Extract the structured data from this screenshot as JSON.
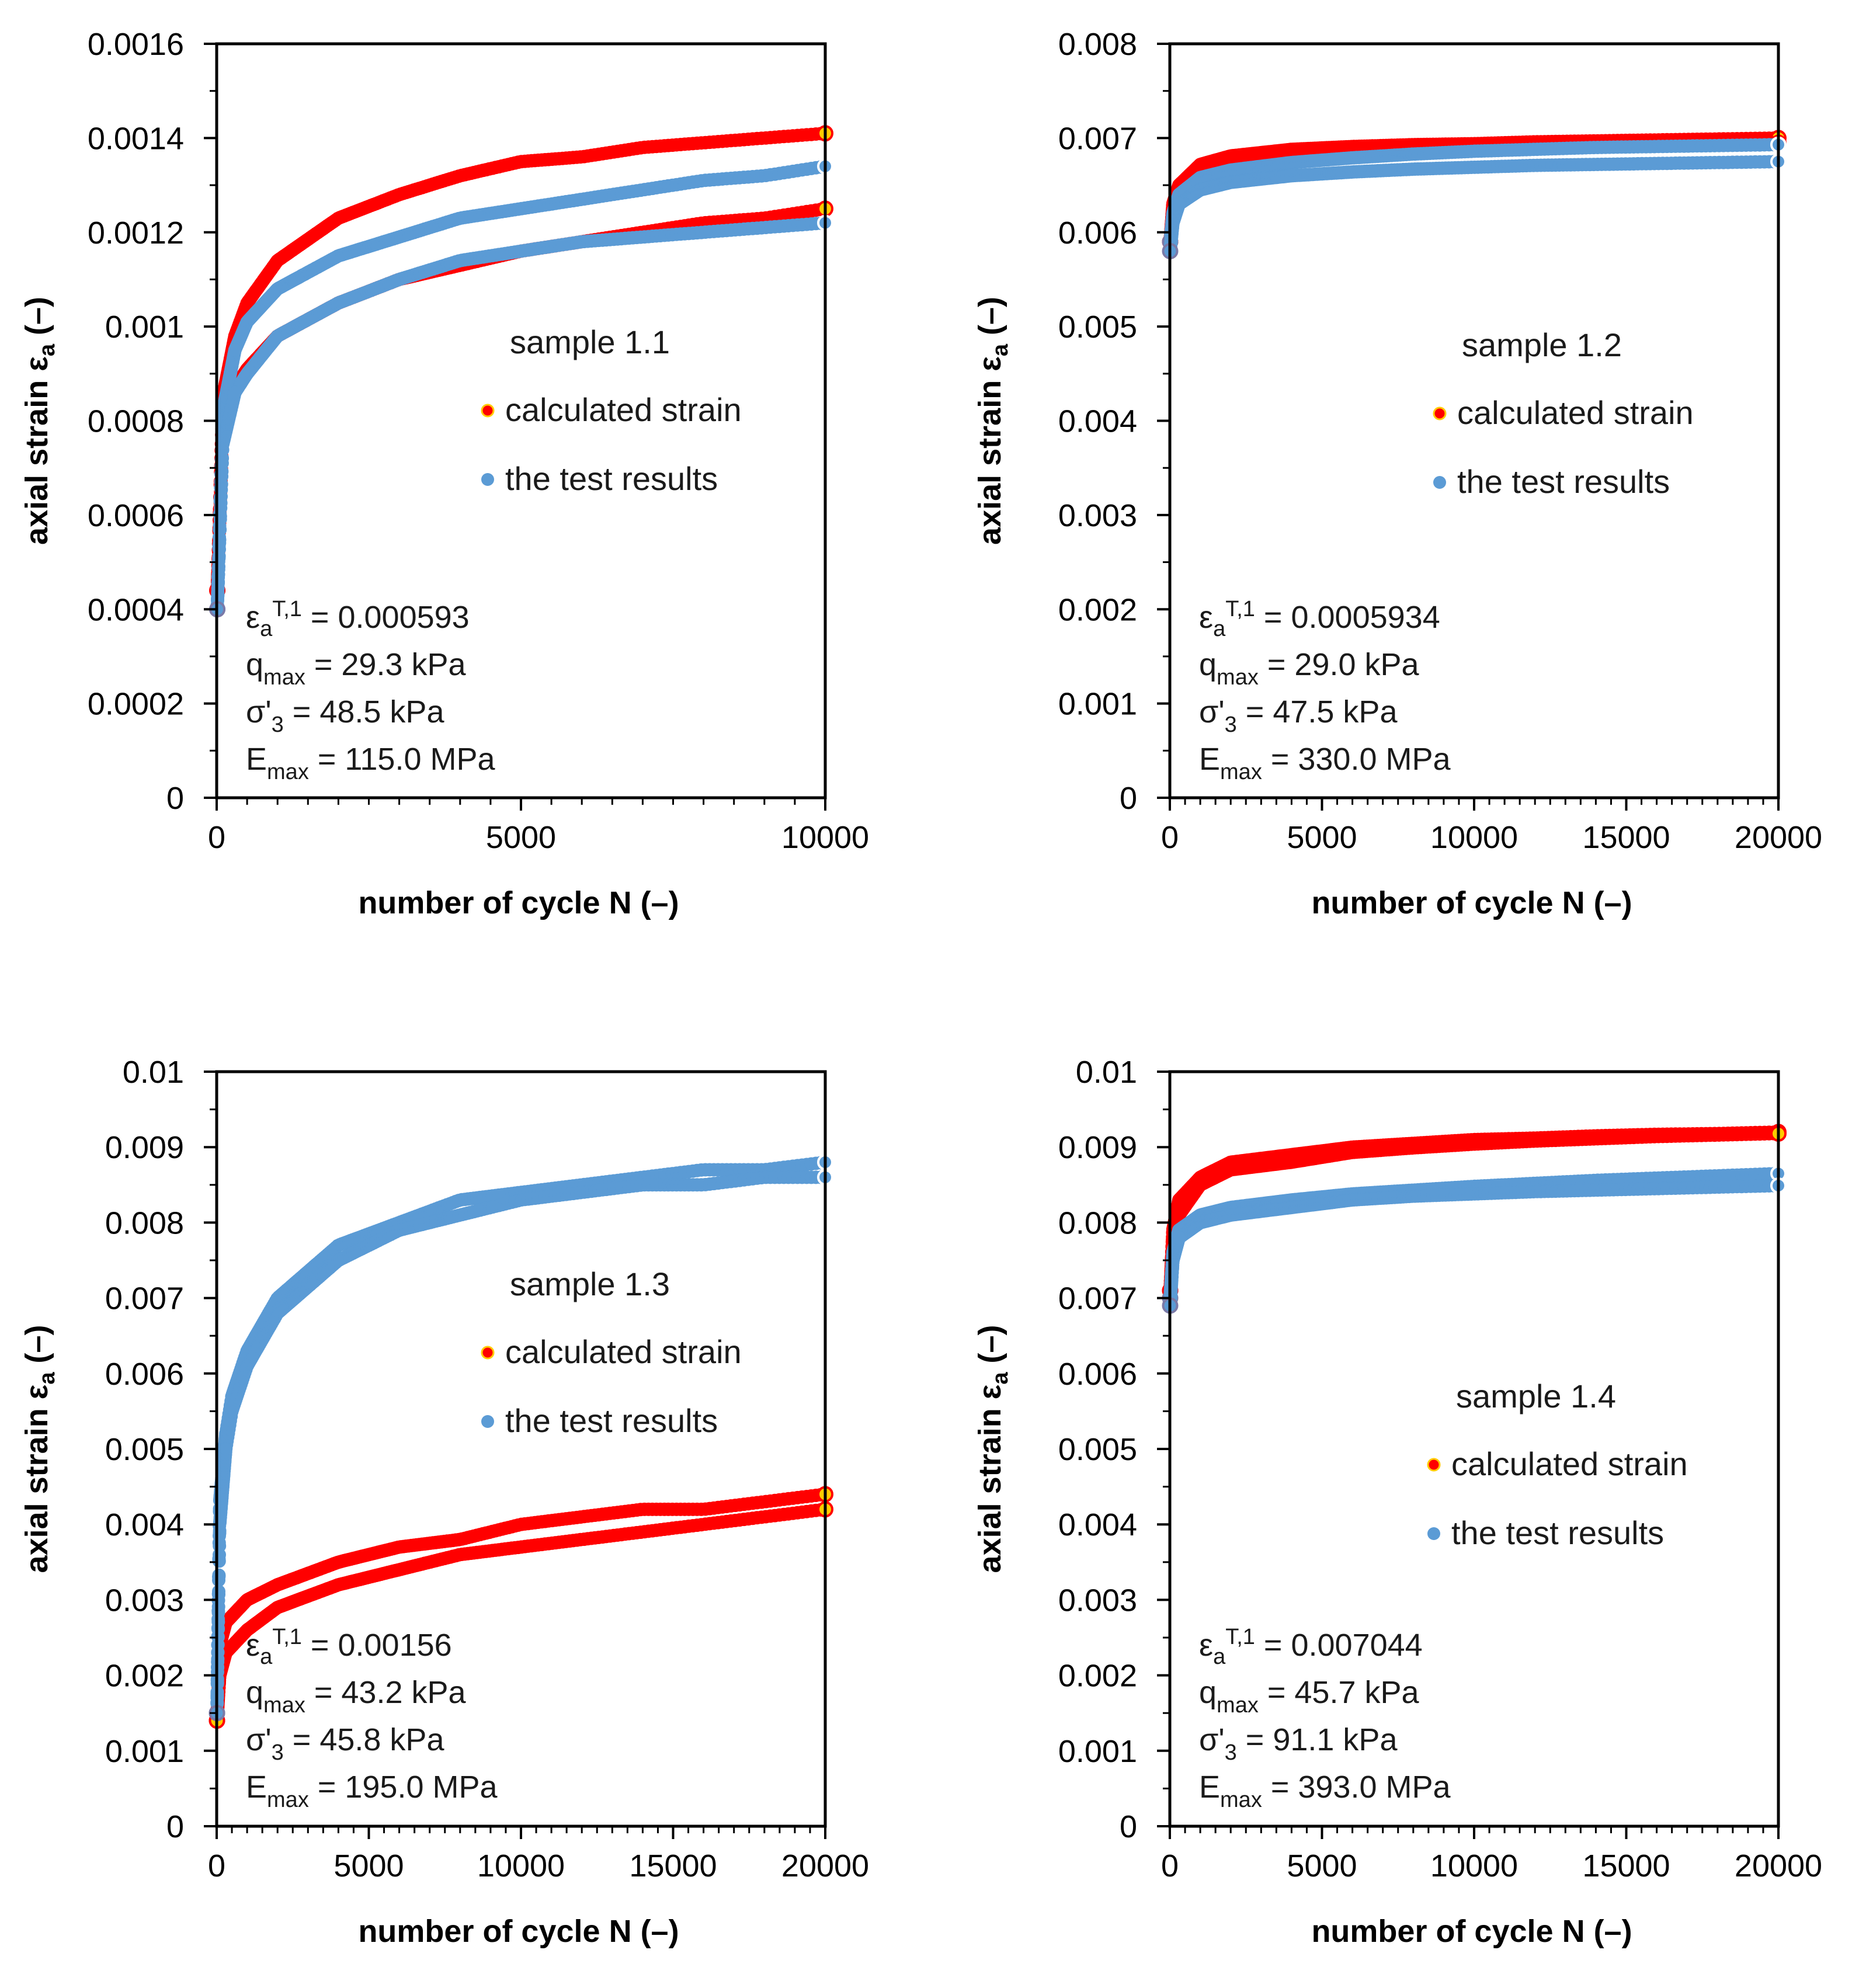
{
  "chart_data": [
    {
      "type": "scatter",
      "sample_label": "sample 1.1",
      "xlabel": "number of cycle N (–)",
      "ylabel": "axial strain εa (–)",
      "xlim": [
        0,
        10000
      ],
      "ylim": [
        0,
        0.0016
      ],
      "xticks": [
        "0",
        "5000",
        "10000"
      ],
      "yticks": [
        "0",
        "0.0002",
        "0.0004",
        "0.0006",
        "0.0008",
        "0.001",
        "0.0012",
        "0.0014",
        "0.0016"
      ],
      "legend": [
        "calculated strain",
        "the test results"
      ],
      "params": {
        "eps": {
          "sym": "ε",
          "sub": "a",
          "sup": "T,1",
          "rest": " = 0.000593"
        },
        "q": {
          "sym": "q",
          "sub": "max",
          "rest": " = 29.3 kPa"
        },
        "sigma": {
          "sym": "σ'",
          "sub": "3",
          "rest": " = 48.5 kPa"
        },
        "E": {
          "sym": "E",
          "sub": "max",
          "rest": " = 115.0 MPa"
        }
      },
      "series": [
        {
          "name": "calculated strain (upper)",
          "x": [
            10,
            100,
            300,
            500,
            1000,
            2000,
            3000,
            4000,
            5000,
            6000,
            7000,
            8000,
            9000,
            10000
          ],
          "values": [
            0.00044,
            0.00085,
            0.00098,
            0.00105,
            0.00114,
            0.00123,
            0.00128,
            0.00132,
            0.00135,
            0.00136,
            0.00138,
            0.00139,
            0.0014,
            0.00141
          ]
        },
        {
          "name": "calculated strain (lower)",
          "x": [
            10,
            100,
            300,
            500,
            1000,
            2000,
            3000,
            4000,
            5000,
            6000,
            7000,
            8000,
            9000,
            10000
          ],
          "values": [
            0.00044,
            0.00078,
            0.00087,
            0.00091,
            0.00098,
            0.00105,
            0.0011,
            0.00113,
            0.00116,
            0.00118,
            0.0012,
            0.00122,
            0.00123,
            0.00125
          ]
        },
        {
          "name": "the test results (upper)",
          "x": [
            10,
            100,
            300,
            500,
            1000,
            2000,
            3000,
            4000,
            5000,
            6000,
            7000,
            8000,
            9000,
            10000
          ],
          "values": [
            0.0004,
            0.00082,
            0.00095,
            0.00101,
            0.00108,
            0.00115,
            0.00119,
            0.00123,
            0.00125,
            0.00127,
            0.00129,
            0.00131,
            0.00132,
            0.00134
          ]
        },
        {
          "name": "the test results (lower)",
          "x": [
            10,
            100,
            300,
            500,
            1000,
            2000,
            3000,
            4000,
            5000,
            6000,
            7000,
            8000,
            9000,
            10000
          ],
          "values": [
            0.0004,
            0.00075,
            0.00086,
            0.0009,
            0.00098,
            0.00105,
            0.0011,
            0.00114,
            0.00116,
            0.00118,
            0.00119,
            0.0012,
            0.00121,
            0.00122
          ]
        }
      ]
    },
    {
      "type": "scatter",
      "sample_label": "sample 1.2",
      "xlabel": "number of cycle N (–)",
      "ylabel": "axial strain εa (–)",
      "xlim": [
        0,
        20000
      ],
      "ylim": [
        0,
        0.008
      ],
      "xticks": [
        "0",
        "5000",
        "10000",
        "15000",
        "20000"
      ],
      "yticks": [
        "0",
        "0.001",
        "0.002",
        "0.003",
        "0.004",
        "0.005",
        "0.006",
        "0.007",
        "0.008"
      ],
      "legend": [
        "calculated strain",
        "the test results"
      ],
      "params": {
        "eps": {
          "sym": "ε",
          "sub": "a",
          "sup": "T,1",
          "rest": " = 0.0005934"
        },
        "q": {
          "sym": "q",
          "sub": "max",
          "rest": " = 29.0 kPa"
        },
        "sigma": {
          "sym": "σ'",
          "sub": "3",
          "rest": " = 47.5 kPa"
        },
        "E": {
          "sym": "E",
          "sub": "max",
          "rest": " = 330.0 MPa"
        }
      },
      "series": [
        {
          "name": "calculated strain (upper)",
          "x": [
            10,
            100,
            300,
            1000,
            2000,
            4000,
            6000,
            8000,
            10000,
            12000,
            14000,
            16000,
            18000,
            20000
          ],
          "values": [
            0.0059,
            0.0063,
            0.0065,
            0.00672,
            0.00681,
            0.00688,
            0.00691,
            0.00693,
            0.00694,
            0.00696,
            0.00697,
            0.00698,
            0.00699,
            0.007
          ]
        },
        {
          "name": "calculated strain (lower)",
          "x": [
            10,
            100,
            300,
            1000,
            2000,
            4000,
            6000,
            8000,
            10000,
            12000,
            14000,
            16000,
            18000,
            20000
          ],
          "values": [
            0.0059,
            0.0062,
            0.0064,
            0.00662,
            0.00672,
            0.0068,
            0.00684,
            0.00687,
            0.00689,
            0.00691,
            0.00692,
            0.00693,
            0.00694,
            0.00695
          ]
        },
        {
          "name": "the test results (upper)",
          "x": [
            10,
            100,
            300,
            1000,
            2000,
            4000,
            6000,
            8000,
            10000,
            12000,
            14000,
            16000,
            18000,
            20000
          ],
          "values": [
            0.0059,
            0.0062,
            0.0064,
            0.00658,
            0.00666,
            0.00674,
            0.00679,
            0.00683,
            0.00686,
            0.00688,
            0.0069,
            0.00691,
            0.00692,
            0.00693
          ]
        },
        {
          "name": "the test results (lower)",
          "x": [
            10,
            100,
            300,
            1000,
            2000,
            4000,
            6000,
            8000,
            10000,
            12000,
            14000,
            16000,
            18000,
            20000
          ],
          "values": [
            0.0058,
            0.0061,
            0.0063,
            0.00645,
            0.00653,
            0.0066,
            0.00664,
            0.00667,
            0.00669,
            0.00671,
            0.00672,
            0.00673,
            0.00674,
            0.00675
          ]
        }
      ]
    },
    {
      "type": "scatter",
      "sample_label": "sample 1.3",
      "xlabel": "number of cycle N (–)",
      "ylabel": "axial strain εa (–)",
      "xlim": [
        0,
        20000
      ],
      "ylim": [
        0,
        0.01
      ],
      "xticks": [
        "0",
        "5000",
        "10000",
        "15000",
        "20000"
      ],
      "yticks": [
        "0",
        "0.001",
        "0.002",
        "0.003",
        "0.004",
        "0.005",
        "0.006",
        "0.007",
        "0.008",
        "0.009",
        "0.01"
      ],
      "legend": [
        "calculated strain",
        "the test results"
      ],
      "params": {
        "eps": {
          "sym": "ε",
          "sub": "a",
          "sup": "T,1",
          "rest": " = 0.00156"
        },
        "q": {
          "sym": "q",
          "sub": "max",
          "rest": " = 43.2 kPa"
        },
        "sigma": {
          "sym": "σ'",
          "sub": "3",
          "rest": " = 45.8 kPa"
        },
        "E": {
          "sym": "E",
          "sub": "max",
          "rest": " = 195.0 MPa"
        }
      },
      "series": [
        {
          "name": "calculated strain (upper)",
          "x": [
            10,
            100,
            300,
            1000,
            2000,
            4000,
            6000,
            8000,
            10000,
            12000,
            14000,
            16000,
            18000,
            20000
          ],
          "values": [
            0.0014,
            0.0024,
            0.0027,
            0.003,
            0.0032,
            0.0035,
            0.0037,
            0.0038,
            0.004,
            0.0041,
            0.0042,
            0.0042,
            0.0043,
            0.0044
          ]
        },
        {
          "name": "calculated strain (lower)",
          "x": [
            10,
            100,
            300,
            1000,
            2000,
            4000,
            6000,
            8000,
            10000,
            12000,
            14000,
            16000,
            18000,
            20000
          ],
          "values": [
            0.0014,
            0.002,
            0.0023,
            0.0026,
            0.0029,
            0.0032,
            0.0034,
            0.0036,
            0.0037,
            0.0038,
            0.0039,
            0.004,
            0.0041,
            0.0042
          ]
        },
        {
          "name": "the test results (upper)",
          "x": [
            10,
            100,
            300,
            500,
            1000,
            2000,
            4000,
            6000,
            8000,
            10000,
            12000,
            14000,
            16000,
            18000,
            20000
          ],
          "values": [
            0.0015,
            0.0043,
            0.0052,
            0.0057,
            0.0063,
            0.007,
            0.0077,
            0.008,
            0.0083,
            0.0084,
            0.0085,
            0.0086,
            0.0087,
            0.0087,
            0.0088
          ]
        },
        {
          "name": "the test results (lower)",
          "x": [
            10,
            100,
            300,
            500,
            1000,
            2000,
            4000,
            6000,
            8000,
            10000,
            12000,
            14000,
            16000,
            18000,
            20000
          ],
          "values": [
            0.0015,
            0.004,
            0.005,
            0.0055,
            0.0061,
            0.0068,
            0.0075,
            0.0079,
            0.0081,
            0.0083,
            0.0084,
            0.0085,
            0.0085,
            0.0086,
            0.0086
          ]
        }
      ]
    },
    {
      "type": "scatter",
      "sample_label": "sample 1.4",
      "xlabel": "number of cycle N (–)",
      "ylabel": "axial strain εa (–)",
      "xlim": [
        0,
        20000
      ],
      "ylim": [
        0,
        0.01
      ],
      "xticks": [
        "0",
        "5000",
        "10000",
        "15000",
        "20000"
      ],
      "yticks": [
        "0",
        "0.001",
        "0.002",
        "0.003",
        "0.004",
        "0.005",
        "0.006",
        "0.007",
        "0.008",
        "0.009",
        "0.01"
      ],
      "legend": [
        "calculated strain",
        "the test results"
      ],
      "params": {
        "eps": {
          "sym": "ε",
          "sub": "a",
          "sup": "T,1",
          "rest": " = 0.007044"
        },
        "q": {
          "sym": "q",
          "sub": "max",
          "rest": " = 45.7 kPa"
        },
        "sigma": {
          "sym": "σ'",
          "sub": "3",
          "rest": " = 91.1 kPa"
        },
        "E": {
          "sym": "E",
          "sub": "max",
          "rest": " = 393.0 MPa"
        }
      },
      "series": [
        {
          "name": "calculated strain (upper)",
          "x": [
            10,
            100,
            300,
            1000,
            2000,
            4000,
            6000,
            8000,
            10000,
            12000,
            14000,
            16000,
            18000,
            20000
          ],
          "values": [
            0.0071,
            0.0079,
            0.0083,
            0.0086,
            0.0088,
            0.0089,
            0.009,
            0.00905,
            0.0091,
            0.00912,
            0.00915,
            0.00917,
            0.00918,
            0.0092
          ]
        },
        {
          "name": "calculated strain (lower)",
          "x": [
            10,
            100,
            300,
            1000,
            2000,
            4000,
            6000,
            8000,
            10000,
            12000,
            14000,
            16000,
            18000,
            20000
          ],
          "values": [
            0.0071,
            0.0077,
            0.0081,
            0.0085,
            0.0087,
            0.0088,
            0.00893,
            0.00899,
            0.00904,
            0.00908,
            0.00911,
            0.00914,
            0.00916,
            0.00918
          ]
        },
        {
          "name": "the test results (upper)",
          "x": [
            10,
            100,
            300,
            1000,
            2000,
            4000,
            6000,
            8000,
            10000,
            12000,
            14000,
            16000,
            18000,
            20000
          ],
          "values": [
            0.007,
            0.0076,
            0.0079,
            0.0081,
            0.0082,
            0.0083,
            0.00838,
            0.00843,
            0.00848,
            0.00852,
            0.00856,
            0.00859,
            0.00862,
            0.00865
          ]
        },
        {
          "name": "the test results (lower)",
          "x": [
            10,
            100,
            300,
            1000,
            2000,
            4000,
            6000,
            8000,
            10000,
            12000,
            14000,
            16000,
            18000,
            20000
          ],
          "values": [
            0.0069,
            0.0075,
            0.0078,
            0.008,
            0.0081,
            0.0082,
            0.0083,
            0.00835,
            0.00838,
            0.00841,
            0.00843,
            0.00845,
            0.00847,
            0.00849
          ]
        }
      ]
    }
  ],
  "colors": {
    "calculated": "#ff0000",
    "calculated_edge": "#ffcc00",
    "test": "#5b9bd5",
    "axis": "#000000",
    "text": "#1a1a1a"
  }
}
